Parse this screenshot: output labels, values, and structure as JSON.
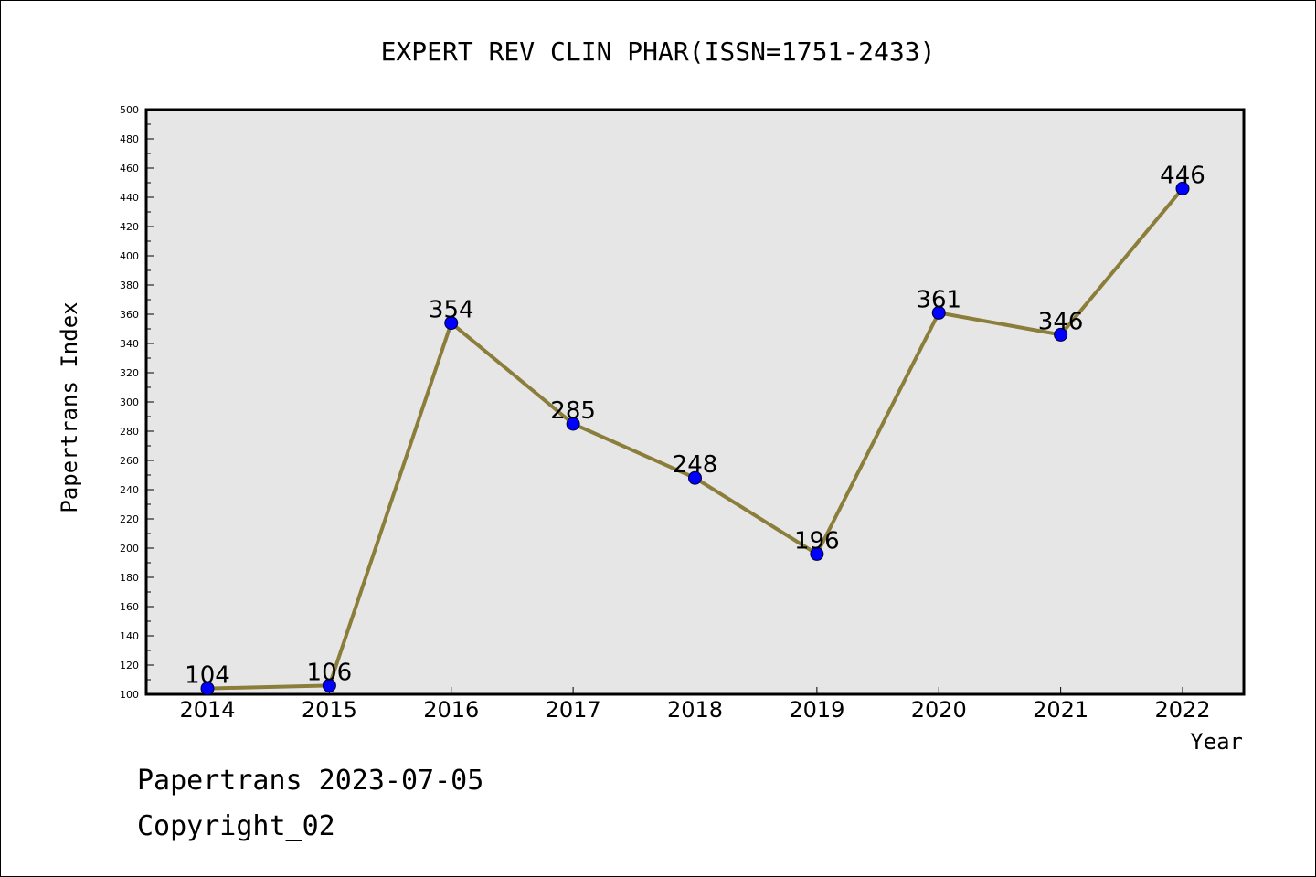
{
  "chart_data": {
    "type": "line",
    "title": "EXPERT REV CLIN PHAR(ISSN=1751-2433)",
    "xlabel": "Year",
    "ylabel": "Papertrans Index",
    "x": [
      "2014",
      "2015",
      "2016",
      "2017",
      "2018",
      "2019",
      "2020",
      "2021",
      "2022"
    ],
    "series": [
      {
        "values": [
          104,
          106,
          354,
          285,
          248,
          196,
          361,
          346,
          446
        ]
      }
    ],
    "ylim": [
      100,
      500
    ],
    "yticks": [
      100,
      120,
      140,
      160,
      180,
      200,
      220,
      240,
      260,
      280,
      300,
      320,
      340,
      360,
      380,
      400,
      420,
      440,
      460,
      480,
      500
    ],
    "grid": false,
    "data_labels": true
  },
  "footer": {
    "line1": "Papertrans 2023-07-05",
    "line2": "Copyright_02"
  },
  "colors": {
    "plot_bg": "#e6e6e6",
    "line": "#8b7d3a",
    "marker": "#0000ff"
  }
}
